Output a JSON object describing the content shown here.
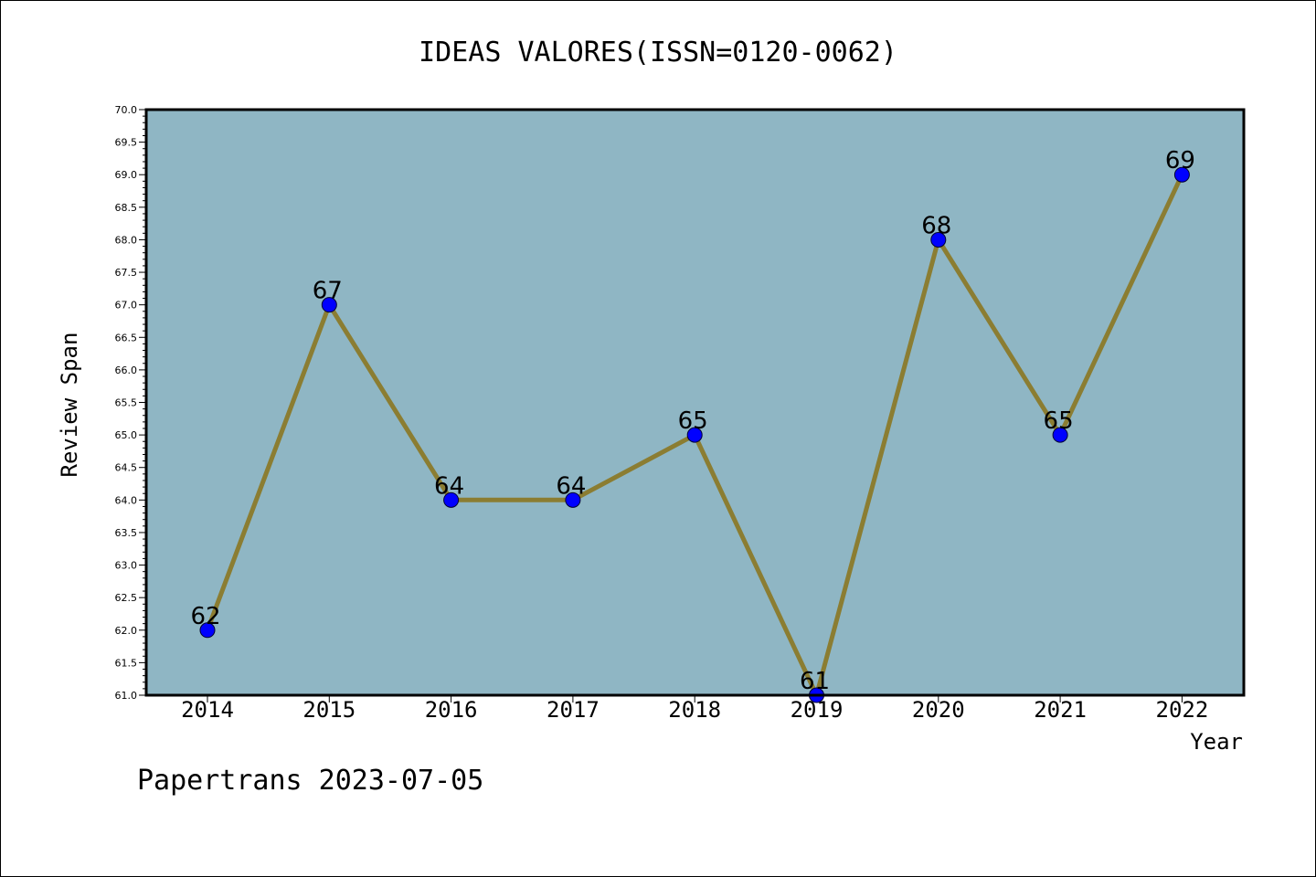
{
  "chart_data": {
    "type": "line",
    "title": "IDEAS VALORES(ISSN=0120-0062)",
    "xlabel": "Year",
    "ylabel": "Review Span",
    "categories": [
      "2014",
      "2015",
      "2016",
      "2017",
      "2018",
      "2019",
      "2020",
      "2021",
      "2022"
    ],
    "values": [
      62,
      67,
      64,
      64,
      65,
      61,
      68,
      65,
      69
    ],
    "data_labels": [
      "62",
      "67",
      "64",
      "64",
      "65",
      "61",
      "68",
      "65",
      "69"
    ],
    "ylim": [
      61.0,
      70.0
    ],
    "yticks": [
      "61.0",
      "61.5",
      "62.0",
      "62.5",
      "63.0",
      "63.5",
      "64.0",
      "64.5",
      "65.0",
      "65.5",
      "66.0",
      "66.5",
      "67.0",
      "67.5",
      "68.0",
      "68.5",
      "69.0",
      "69.5",
      "70.0"
    ],
    "grid": false,
    "colors": {
      "plot_background": "#8fb6c4",
      "line": "#8b7d32",
      "marker": "#0000ff"
    }
  },
  "footer": {
    "credit": "Papertrans 2023-07-05"
  }
}
